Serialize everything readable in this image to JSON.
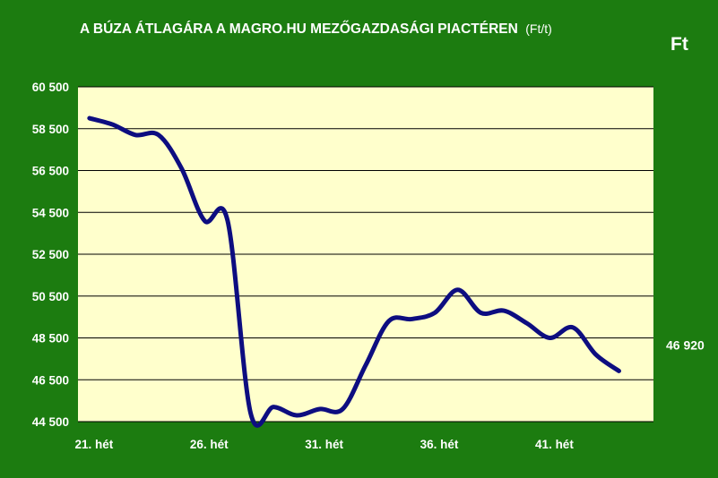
{
  "chart_data": {
    "type": "line",
    "title": "A BÚZA ÁTLAGÁRA A MAGRO.HU MEZŐGAZDASÁGI PIACTÉREN",
    "title_unit": "(Ft/t)",
    "unit_label": "Ft",
    "xlabel": "",
    "ylabel": "",
    "ylim": [
      44500,
      60500
    ],
    "y_ticks": [
      44500,
      46500,
      48500,
      50500,
      52500,
      54500,
      56500,
      58500,
      60500
    ],
    "y_tick_labels": [
      "44 500",
      "46 500",
      "48 500",
      "50 500",
      "52 500",
      "54 500",
      "56 500",
      "58 500",
      "60 500"
    ],
    "x_tick_positions": [
      21,
      26,
      31,
      36,
      41
    ],
    "x_tick_labels": [
      "21. hét",
      "26. hét",
      "31. hét",
      "36. hét",
      "41. hét"
    ],
    "grid": true,
    "plot_background": "#ffffcc",
    "page_background": "#1c7c10",
    "line_color": "#0d0d80",
    "last_value_label": "46 920",
    "series": [
      {
        "x": [
          21,
          22,
          23,
          24,
          25,
          26,
          27,
          28,
          29,
          30,
          31,
          32,
          33,
          34,
          35,
          36,
          37,
          38,
          39,
          40,
          41,
          42,
          43,
          44
        ],
        "values": [
          59000,
          58700,
          58200,
          58200,
          56600,
          54100,
          54100,
          44900,
          45200,
          44800,
          45100,
          45100,
          47200,
          49300,
          49400,
          49700,
          50800,
          49700,
          49800,
          49200,
          48500,
          49000,
          47700,
          46920
        ]
      }
    ]
  }
}
